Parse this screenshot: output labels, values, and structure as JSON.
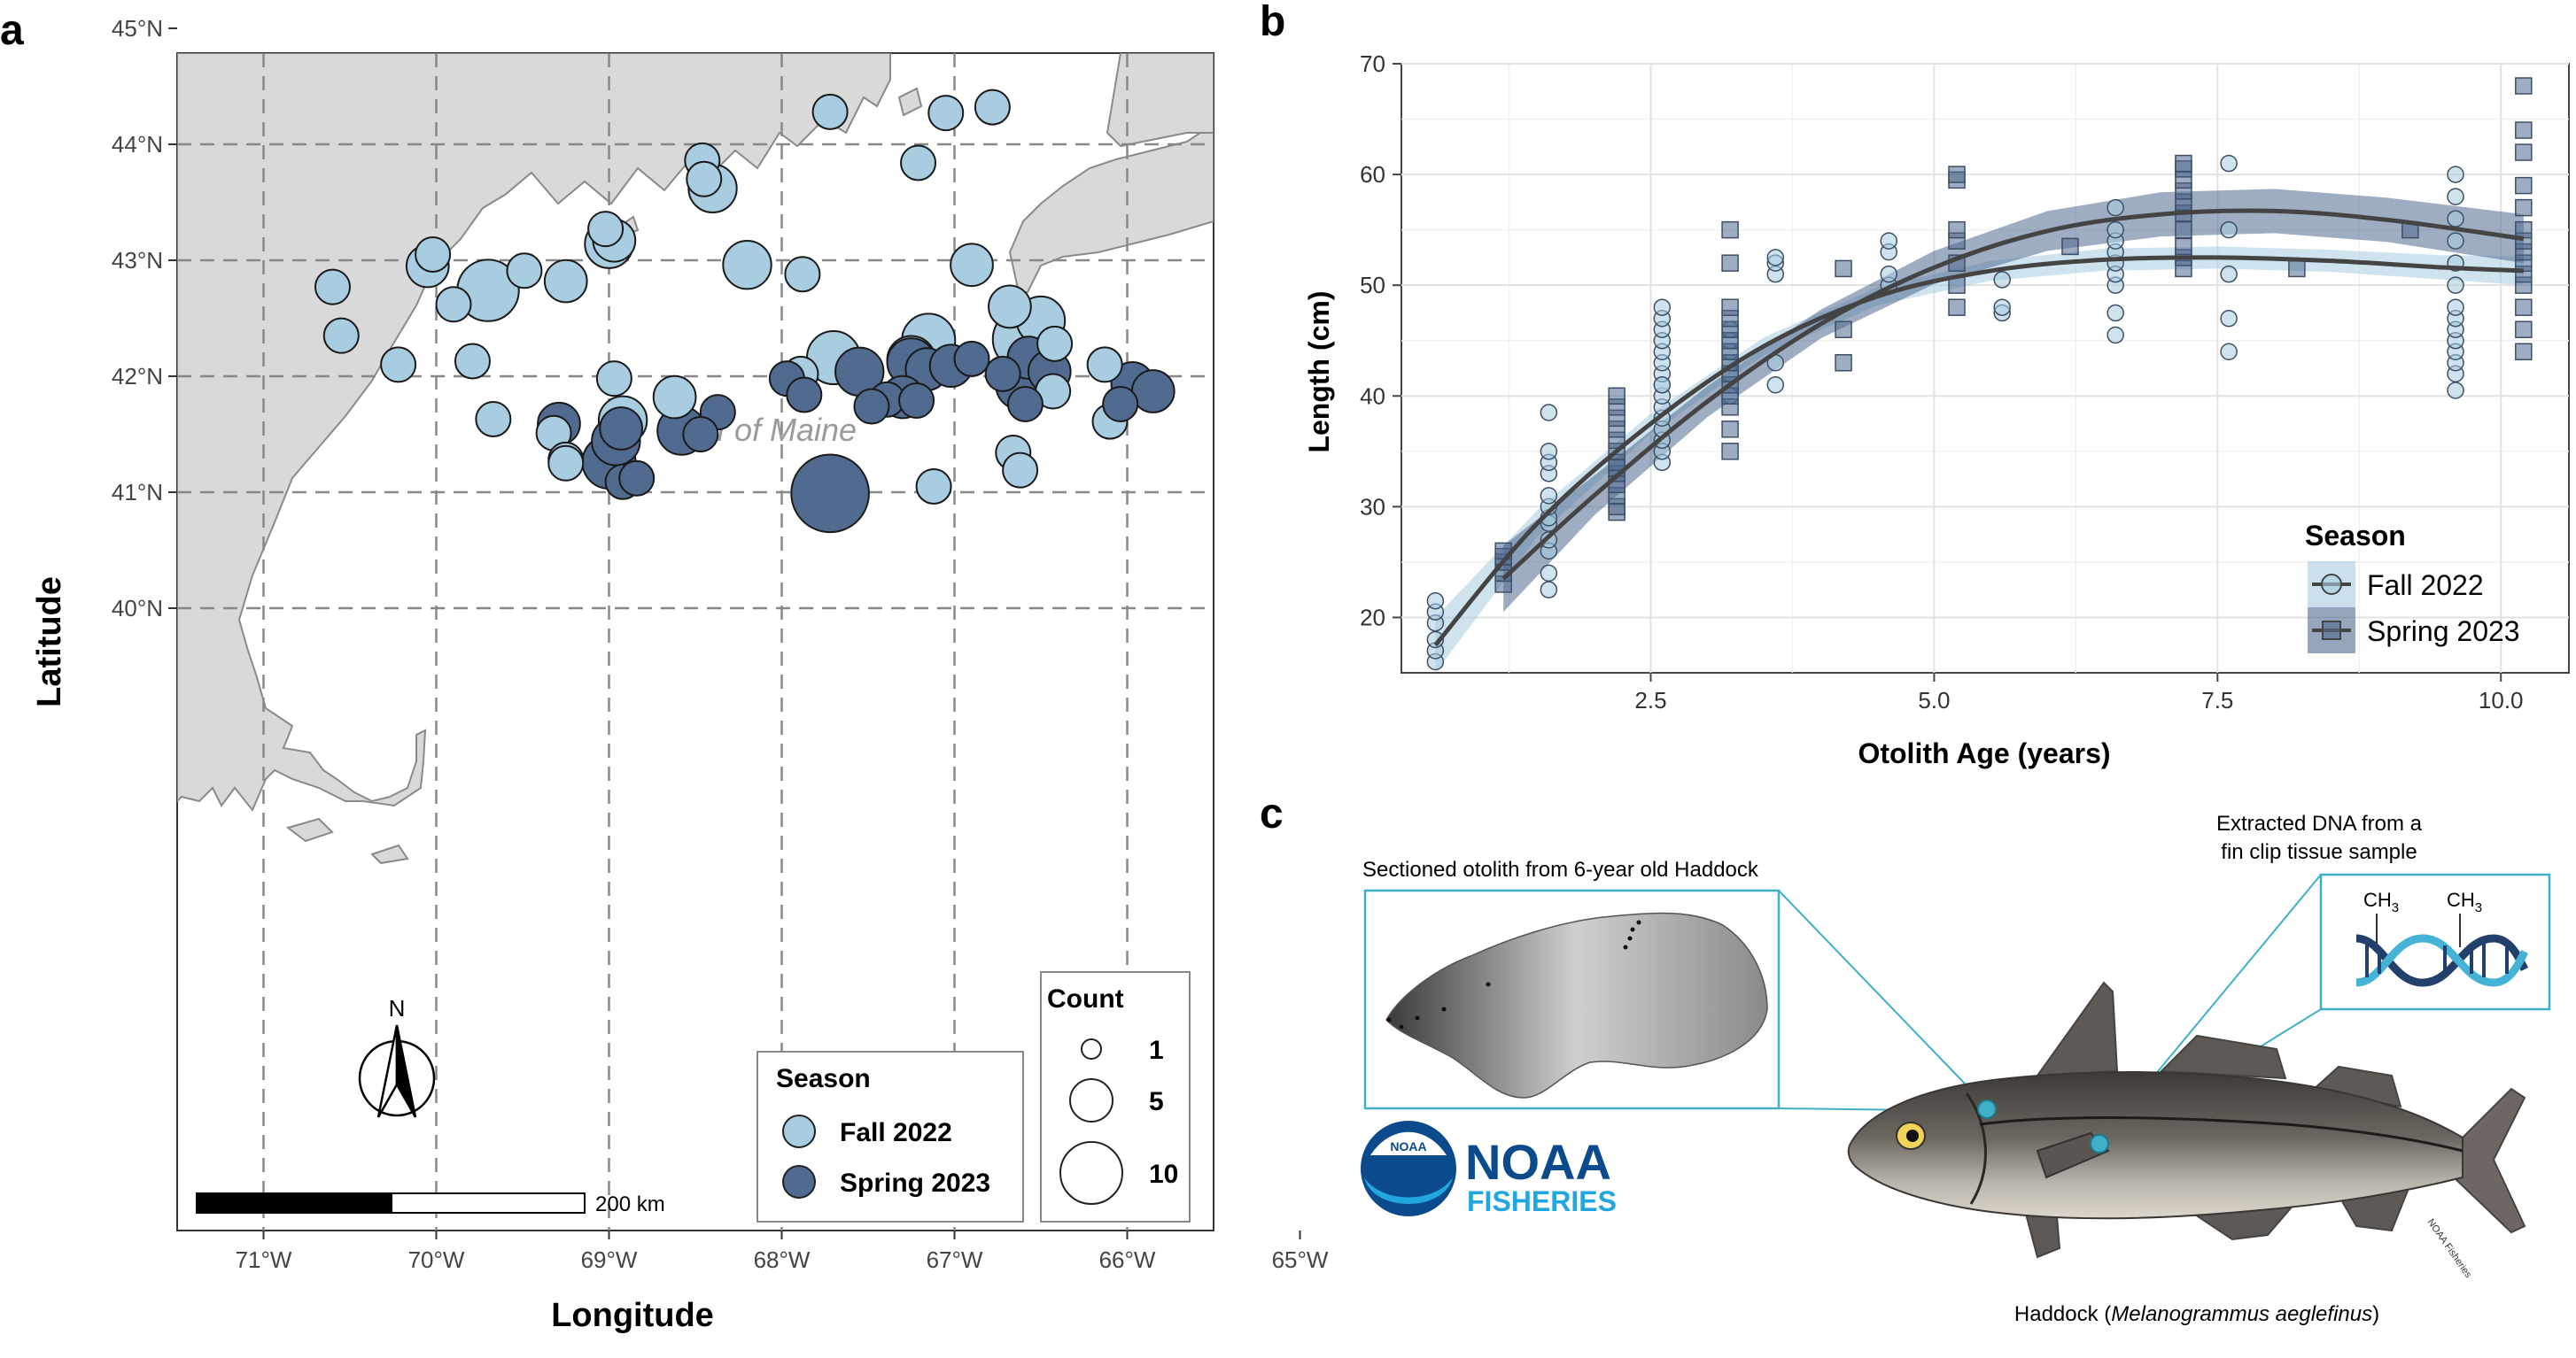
{
  "panel_labels": {
    "a": "a",
    "b": "b",
    "c": "c"
  },
  "map": {
    "place_label": "Gulf of Maine",
    "x_label": "Longitude",
    "y_label": "Latitude",
    "lon_ticks": [
      "71°W",
      "70°W",
      "69°W",
      "68°W",
      "67°W",
      "66°W",
      "65°W"
    ],
    "lat_ticks": [
      "45°N",
      "44°N",
      "43°N",
      "42°N",
      "41°N",
      "40°N"
    ],
    "north_label": "N",
    "scale_label": "200 km",
    "legend_season": {
      "title": "Season",
      "items": [
        {
          "label": "Fall 2022",
          "color": "#a8cce0"
        },
        {
          "label": "Spring 2023",
          "color": "#516a8f"
        }
      ]
    },
    "legend_count": {
      "title": "Count",
      "items": [
        {
          "label": "1",
          "count": 1
        },
        {
          "label": "5",
          "count": 5
        },
        {
          "label": "10",
          "count": 10
        }
      ]
    },
    "colors": {
      "land": "#d9d9d9",
      "fall": "#a8cce0",
      "spring": "#516a8f"
    },
    "stations": [
      {
        "lon": -67.72,
        "lat": 44.28,
        "count": 1,
        "season": "fall"
      },
      {
        "lon": -67.05,
        "lat": 44.27,
        "count": 1,
        "season": "fall"
      },
      {
        "lon": -66.78,
        "lat": 44.32,
        "count": 1,
        "season": "fall"
      },
      {
        "lon": -68.46,
        "lat": 43.86,
        "count": 1,
        "season": "fall"
      },
      {
        "lon": -67.21,
        "lat": 43.84,
        "count": 1,
        "season": "fall"
      },
      {
        "lon": -68.45,
        "lat": 43.7,
        "count": 1,
        "season": "fall"
      },
      {
        "lon": -68.4,
        "lat": 43.62,
        "count": 3,
        "season": "fall"
      },
      {
        "lon": -69.02,
        "lat": 43.27,
        "count": 1,
        "season": "fall"
      },
      {
        "lon": -68.97,
        "lat": 43.17,
        "count": 2,
        "season": "fall"
      },
      {
        "lon": -69.0,
        "lat": 43.14,
        "count": 3,
        "season": "fall"
      },
      {
        "lon": -70.02,
        "lat": 43.05,
        "count": 1,
        "season": "fall"
      },
      {
        "lon": -70.05,
        "lat": 42.95,
        "count": 2,
        "season": "fall"
      },
      {
        "lon": -68.2,
        "lat": 42.96,
        "count": 3,
        "season": "fall"
      },
      {
        "lon": -66.9,
        "lat": 42.96,
        "count": 2,
        "season": "fall"
      },
      {
        "lon": -69.49,
        "lat": 42.91,
        "count": 1,
        "season": "fall"
      },
      {
        "lon": -67.88,
        "lat": 42.88,
        "count": 1,
        "season": "fall"
      },
      {
        "lon": -69.25,
        "lat": 42.82,
        "count": 2,
        "season": "fall"
      },
      {
        "lon": -70.6,
        "lat": 42.77,
        "count": 1,
        "season": "fall"
      },
      {
        "lon": -69.7,
        "lat": 42.74,
        "count": 6,
        "season": "fall"
      },
      {
        "lon": -69.9,
        "lat": 42.62,
        "count": 1,
        "season": "fall"
      },
      {
        "lon": -66.68,
        "lat": 42.6,
        "count": 2,
        "season": "fall"
      },
      {
        "lon": -66.5,
        "lat": 42.48,
        "count": 3,
        "season": "fall"
      },
      {
        "lon": -70.55,
        "lat": 42.35,
        "count": 1,
        "season": "fall"
      },
      {
        "lon": -67.15,
        "lat": 42.31,
        "count": 4,
        "season": "fall"
      },
      {
        "lon": -66.6,
        "lat": 42.32,
        "count": 6,
        "season": "fall"
      },
      {
        "lon": -66.42,
        "lat": 42.28,
        "count": 1,
        "season": "fall"
      },
      {
        "lon": -69.79,
        "lat": 42.13,
        "count": 1,
        "season": "fall"
      },
      {
        "lon": -70.22,
        "lat": 42.1,
        "count": 1,
        "season": "fall"
      },
      {
        "lon": -67.7,
        "lat": 42.16,
        "count": 4,
        "season": "fall"
      },
      {
        "lon": -67.25,
        "lat": 42.14,
        "count": 3,
        "season": "fall"
      },
      {
        "lon": -66.13,
        "lat": 42.1,
        "count": 1,
        "season": "fall"
      },
      {
        "lon": -68.97,
        "lat": 41.98,
        "count": 1,
        "season": "fall"
      },
      {
        "lon": -67.89,
        "lat": 42.02,
        "count": 1,
        "season": "fall"
      },
      {
        "lon": -66.43,
        "lat": 41.87,
        "count": 1,
        "season": "fall"
      },
      {
        "lon": -68.62,
        "lat": 41.82,
        "count": 2,
        "season": "fall"
      },
      {
        "lon": -69.67,
        "lat": 41.63,
        "count": 1,
        "season": "fall"
      },
      {
        "lon": -68.92,
        "lat": 41.62,
        "count": 3,
        "season": "fall"
      },
      {
        "lon": -69.32,
        "lat": 41.51,
        "count": 1,
        "season": "fall"
      },
      {
        "lon": -69.25,
        "lat": 41.28,
        "count": 1,
        "season": "fall"
      },
      {
        "lon": -69.25,
        "lat": 41.25,
        "count": 1,
        "season": "fall"
      },
      {
        "lon": -66.66,
        "lat": 41.34,
        "count": 1,
        "season": "fall"
      },
      {
        "lon": -66.62,
        "lat": 41.19,
        "count": 1,
        "season": "fall"
      },
      {
        "lon": -67.12,
        "lat": 41.05,
        "count": 1,
        "season": "fall"
      },
      {
        "lon": -66.1,
        "lat": 41.61,
        "count": 1,
        "season": "fall"
      },
      {
        "lon": -67.55,
        "lat": 42.04,
        "count": 3,
        "season": "spring"
      },
      {
        "lon": -67.25,
        "lat": 42.12,
        "count": 3,
        "season": "spring"
      },
      {
        "lon": -67.16,
        "lat": 42.06,
        "count": 2,
        "season": "spring"
      },
      {
        "lon": -67.02,
        "lat": 42.09,
        "count": 2,
        "season": "spring"
      },
      {
        "lon": -66.9,
        "lat": 42.15,
        "count": 1,
        "season": "spring"
      },
      {
        "lon": -66.72,
        "lat": 42.02,
        "count": 1,
        "season": "spring"
      },
      {
        "lon": -66.57,
        "lat": 42.16,
        "count": 2,
        "season": "spring"
      },
      {
        "lon": -66.45,
        "lat": 42.04,
        "count": 2,
        "season": "spring"
      },
      {
        "lon": -66.62,
        "lat": 41.92,
        "count": 3,
        "season": "spring"
      },
      {
        "lon": -66.59,
        "lat": 41.76,
        "count": 1,
        "season": "spring"
      },
      {
        "lon": -65.97,
        "lat": 41.94,
        "count": 2,
        "season": "spring"
      },
      {
        "lon": -65.85,
        "lat": 41.87,
        "count": 2,
        "season": "spring"
      },
      {
        "lon": -66.04,
        "lat": 41.76,
        "count": 1,
        "season": "spring"
      },
      {
        "lon": -67.97,
        "lat": 41.98,
        "count": 1,
        "season": "spring"
      },
      {
        "lon": -67.87,
        "lat": 41.84,
        "count": 1,
        "season": "spring"
      },
      {
        "lon": -67.3,
        "lat": 41.82,
        "count": 2,
        "season": "spring"
      },
      {
        "lon": -67.39,
        "lat": 41.8,
        "count": 1,
        "season": "spring"
      },
      {
        "lon": -67.22,
        "lat": 41.79,
        "count": 1,
        "season": "spring"
      },
      {
        "lon": -67.48,
        "lat": 41.74,
        "count": 1,
        "season": "spring"
      },
      {
        "lon": -68.37,
        "lat": 41.69,
        "count": 1,
        "season": "spring"
      },
      {
        "lon": -68.58,
        "lat": 41.53,
        "count": 3,
        "season": "spring"
      },
      {
        "lon": -68.47,
        "lat": 41.5,
        "count": 1,
        "season": "spring"
      },
      {
        "lon": -69.29,
        "lat": 41.59,
        "count": 2,
        "season": "spring"
      },
      {
        "lon": -68.93,
        "lat": 41.55,
        "count": 2,
        "season": "spring"
      },
      {
        "lon": -68.96,
        "lat": 41.44,
        "count": 3,
        "season": "spring"
      },
      {
        "lon": -69.0,
        "lat": 41.26,
        "count": 4,
        "season": "spring"
      },
      {
        "lon": -68.92,
        "lat": 41.09,
        "count": 1,
        "season": "spring"
      },
      {
        "lon": -68.84,
        "lat": 41.12,
        "count": 1,
        "season": "spring"
      },
      {
        "lon": -67.72,
        "lat": 40.99,
        "count": 11,
        "season": "spring"
      }
    ]
  },
  "chart_data": {
    "type": "scatter",
    "xlabel": "Otolith Age (years)",
    "ylabel": "Length (cm)",
    "xlim": [
      0.3,
      10.6
    ],
    "ylim": [
      15,
      70
    ],
    "x_ticks": [
      "2.5",
      "5.0",
      "7.5",
      "10.0"
    ],
    "y_ticks": [
      "20",
      "30",
      "40",
      "50",
      "60",
      "70"
    ],
    "legend_title": "Season",
    "grid": true,
    "legend_position": "bottom-right",
    "series": [
      {
        "name": "Fall 2022",
        "color": "#a8cce0",
        "marker": "circle",
        "x": [
          0.6,
          0.6,
          0.6,
          0.6,
          0.6,
          0.6,
          1.6,
          1.6,
          1.6,
          1.6,
          1.6,
          1.6,
          1.6,
          1.6,
          1.6,
          1.6,
          1.6,
          1.6,
          2.6,
          2.6,
          2.6,
          2.6,
          2.6,
          2.6,
          2.6,
          2.6,
          2.6,
          2.6,
          2.6,
          2.6,
          2.6,
          2.6,
          2.6,
          2.6,
          3.2,
          3.2,
          3.2,
          3.2,
          3.2,
          3.2,
          3.6,
          3.6,
          3.6,
          3.6,
          3.6,
          4.6,
          4.6,
          4.6,
          4.6,
          5.6,
          5.6,
          5.6,
          6.6,
          6.6,
          6.6,
          6.6,
          6.6,
          6.6,
          6.6,
          6.6,
          6.6,
          7.6,
          7.6,
          7.6,
          7.6,
          7.6,
          9.6,
          9.6,
          9.6,
          9.6,
          9.6,
          9.6,
          9.6,
          9.6,
          9.6,
          9.6,
          9.6,
          9.6,
          9.6,
          9.6
        ],
        "y": [
          16,
          17,
          18,
          19.5,
          20.5,
          21.5,
          22.5,
          24,
          26,
          27,
          28.5,
          29,
          30,
          31,
          33,
          34,
          35,
          38.5,
          34,
          35,
          36,
          37,
          38,
          39,
          40,
          41,
          42,
          43,
          44,
          45,
          46,
          47,
          48,
          41,
          40,
          42,
          43,
          44,
          45,
          46,
          41,
          43,
          51,
          52,
          52.5,
          50,
          51,
          53,
          54,
          47.5,
          48,
          50.5,
          45.5,
          47.5,
          50,
          51,
          52,
          53,
          54,
          55,
          57,
          44,
          47,
          51,
          55,
          61,
          40.5,
          42,
          43,
          44,
          45,
          46,
          47,
          48,
          50,
          52,
          54,
          56,
          58,
          60
        ],
        "fit": {
          "x": [
            0.6,
            1.5,
            2.5,
            3.5,
            4.5,
            5.5,
            6.5,
            7.5,
            8.5,
            9.5,
            10.2
          ],
          "y": [
            17.5,
            28.5,
            37.5,
            44.5,
            49.0,
            51.3,
            52.3,
            52.5,
            52.2,
            51.6,
            51.3
          ]
        }
      },
      {
        "name": "Spring 2023",
        "color": "#516a8f",
        "marker": "square",
        "x": [
          1.2,
          1.2,
          1.2,
          1.2,
          1.2,
          2.2,
          2.2,
          2.2,
          2.2,
          2.2,
          2.2,
          2.2,
          2.2,
          2.2,
          2.2,
          2.2,
          2.2,
          2.2,
          3.2,
          3.2,
          3.2,
          3.2,
          3.2,
          3.2,
          3.2,
          3.2,
          3.2,
          3.2,
          3.2,
          3.2,
          3.2,
          3.2,
          4.2,
          4.2,
          4.2,
          5.2,
          5.2,
          5.2,
          5.2,
          5.2,
          5.2,
          5.2,
          6.2,
          7.2,
          7.2,
          7.2,
          7.2,
          7.2,
          7.2,
          7.2,
          7.2,
          7.2,
          7.2,
          8.2,
          9.2,
          10.2,
          10.2,
          10.2,
          10.2,
          10.2,
          10.2,
          10.2,
          10.2,
          10.2,
          10.2,
          10.2,
          10.2,
          10.2,
          10.2
        ],
        "y": [
          23,
          24,
          25,
          25.5,
          26,
          29.5,
          30,
          31,
          32,
          33,
          33.5,
          34,
          35,
          36,
          37,
          38,
          39,
          40,
          35,
          37,
          39,
          40,
          41,
          42,
          43,
          44,
          45,
          46,
          47,
          48,
          52,
          55,
          43,
          46,
          51.5,
          48,
          50,
          52,
          54,
          55,
          59.5,
          60,
          53.5,
          51.5,
          52.5,
          53.5,
          55,
          56.5,
          57.5,
          58.5,
          59.5,
          60.5,
          61,
          51.5,
          55,
          44,
          46,
          48,
          50,
          51,
          52,
          53,
          54,
          55,
          57,
          59,
          62,
          64,
          68
        ],
        "fit": {
          "x": [
            1.2,
            2.0,
            3.0,
            4.0,
            5.0,
            6.0,
            7.0,
            8.0,
            9.0,
            10.2
          ],
          "y": [
            23.5,
            31.0,
            39.5,
            46.5,
            51.6,
            54.9,
            56.4,
            56.7,
            55.9,
            54.2
          ]
        }
      }
    ]
  },
  "figure_c": {
    "otolith_caption": "Sectioned otolith from 6-year old Haddock",
    "dna_caption_line1": "Extracted DNA from a",
    "dna_caption_line2": "fin clip tissue sample",
    "methyl_left": "CH",
    "methyl_right": "CH",
    "methyl_subscript": "3",
    "noaa_logo_text": "NOAA",
    "noaa_word": "NOAA",
    "fisheries_word": "FISHERIES",
    "fish_caption_prefix": "Haddock (",
    "fish_caption_species": "Melanogrammus aeglefinus",
    "fish_caption_suffix": ")",
    "fish_watermark": "NOAA Fisheries"
  }
}
